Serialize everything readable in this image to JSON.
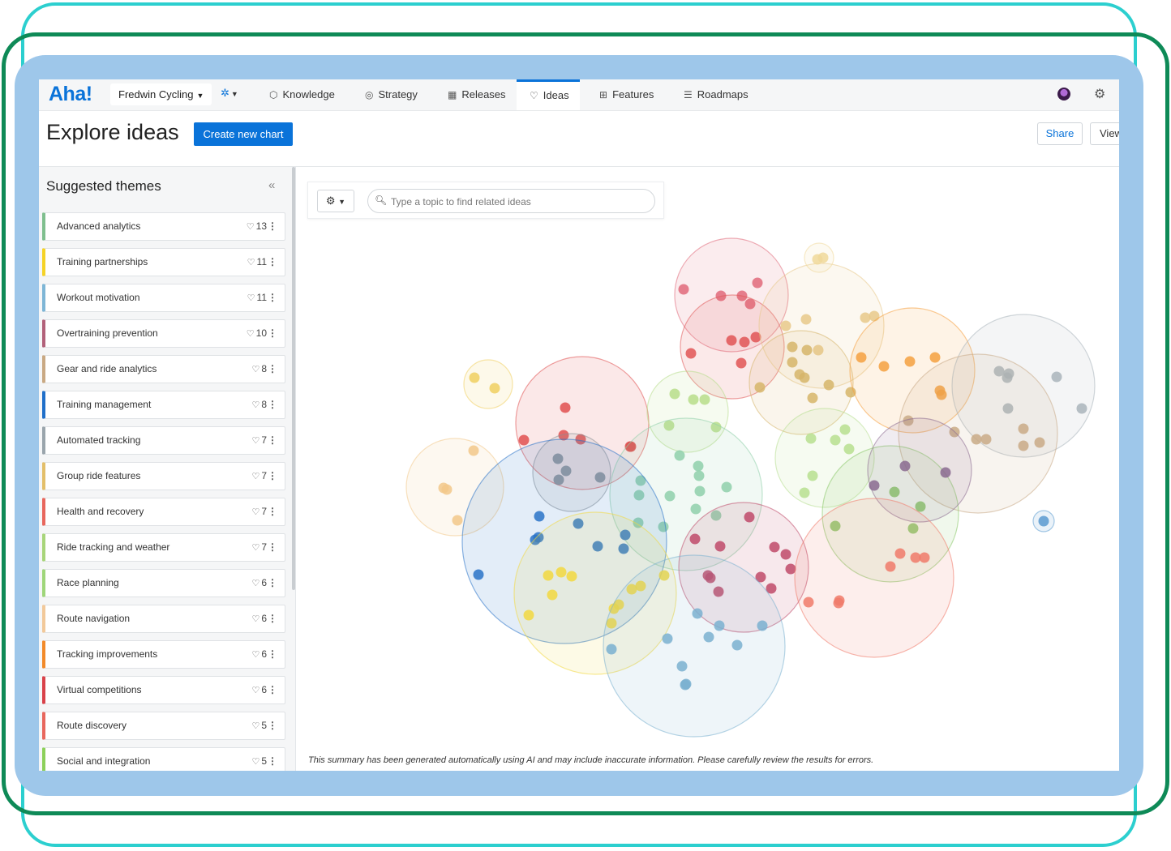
{
  "nav": {
    "logo": "Aha!",
    "workspace": "Fredwin Cycling",
    "tabs": [
      {
        "label": "Knowledge",
        "icon": "cube-icon"
      },
      {
        "label": "Strategy",
        "icon": "target-icon"
      },
      {
        "label": "Releases",
        "icon": "calendar-icon"
      },
      {
        "label": "Ideas",
        "icon": "lightbulb-icon"
      },
      {
        "label": "Features",
        "icon": "grid-icon"
      },
      {
        "label": "Roadmaps",
        "icon": "roadmap-icon"
      }
    ],
    "active_tab": "Ideas"
  },
  "header": {
    "title": "Explore ideas",
    "create_button": "Create new chart",
    "share_button": "Share",
    "view_button": "View"
  },
  "sidebar": {
    "title": "Suggested themes",
    "themes": [
      {
        "label": "Advanced analytics",
        "count": "13",
        "color": "#7fbf8e"
      },
      {
        "label": "Training partnerships",
        "count": "11",
        "color": "#f5d327"
      },
      {
        "label": "Workout motivation",
        "count": "11",
        "color": "#7eb6d6"
      },
      {
        "label": "Overtraining prevention",
        "count": "10",
        "color": "#b2617a"
      },
      {
        "label": "Gear and ride analytics",
        "count": "8",
        "color": "#c9a983"
      },
      {
        "label": "Training management",
        "count": "8",
        "color": "#1f6fc9"
      },
      {
        "label": "Automated tracking",
        "count": "7",
        "color": "#9aa5ac"
      },
      {
        "label": "Group ride features",
        "count": "7",
        "color": "#e3bf6a"
      },
      {
        "label": "Health and recovery",
        "count": "7",
        "color": "#e8675d"
      },
      {
        "label": "Ride tracking and weather",
        "count": "7",
        "color": "#a8d57a"
      },
      {
        "label": "Race planning",
        "count": "6",
        "color": "#9fd67a"
      },
      {
        "label": "Route navigation",
        "count": "6",
        "color": "#f2c99a"
      },
      {
        "label": "Tracking improvements",
        "count": "6",
        "color": "#f28a2a"
      },
      {
        "label": "Virtual competitions",
        "count": "6",
        "color": "#d9424a"
      },
      {
        "label": "Route discovery",
        "count": "5",
        "color": "#e8675d"
      },
      {
        "label": "Social and integration",
        "count": "5",
        "color": "#8cd05a"
      }
    ]
  },
  "search": {
    "placeholder": "Type a topic to find related ideas"
  },
  "disclaimer": "This summary has been generated automatically using AI and may include inaccurate information. Please carefully review the results for errors."
}
